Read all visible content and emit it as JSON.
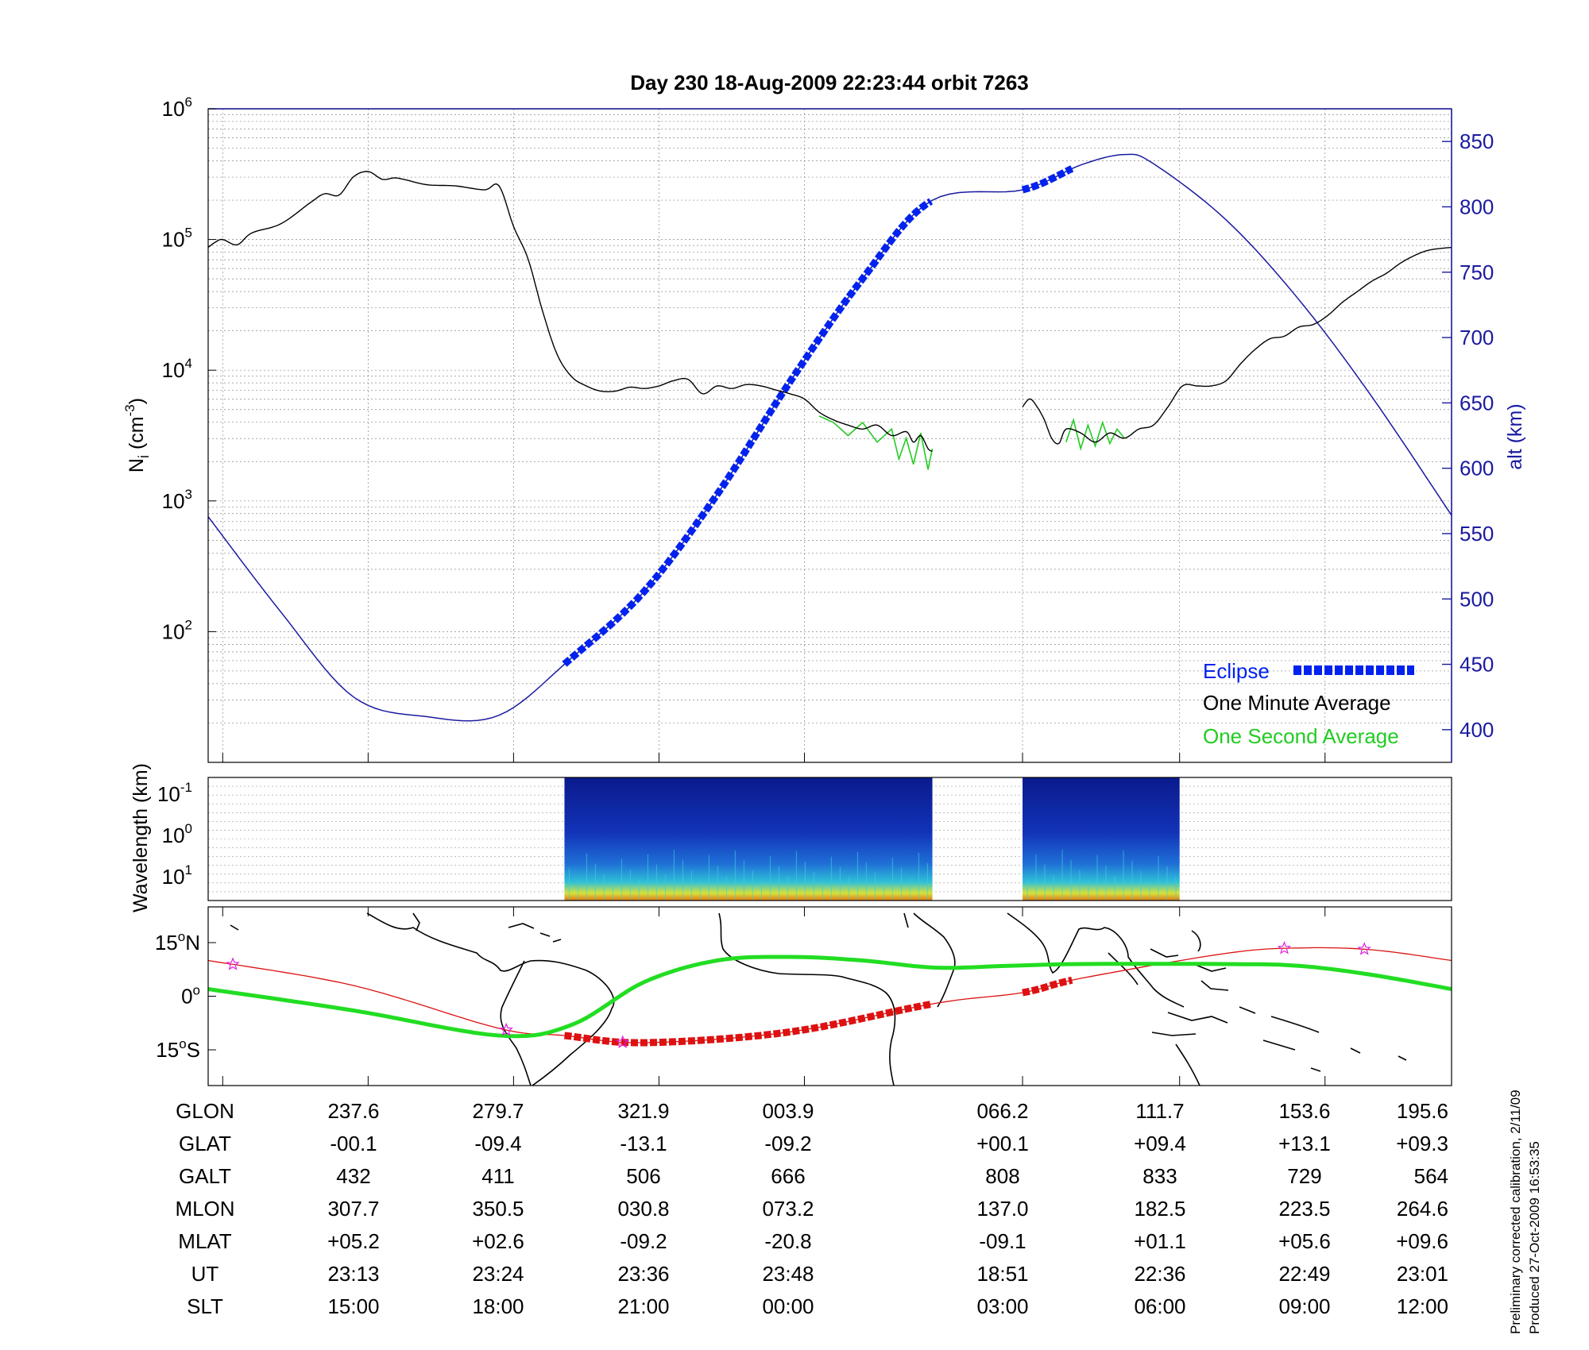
{
  "chart_data": {
    "title": "Day 230  18-Aug-2009 22:23:44   orbit 7263",
    "colors": {
      "eclipse": "#0022ee",
      "one_minute": "#000000",
      "one_second": "#22cc22",
      "altitude_line": "#1a1aa0",
      "track_red": "#dd1111",
      "track_green": "#22dd22",
      "axis_blue": "#1a1aa0",
      "star": "#dd22dd"
    },
    "density_panel": {
      "type": "line",
      "ylabel": "N_i (cm^-3)",
      "ylabel_main": "N",
      "ylabel_sub": "i",
      "ylabel_unit_a": "(cm",
      "ylabel_unit_exp": "-3",
      "ylabel_unit_b": ")",
      "yscale": "log",
      "ylim": [
        1,
        6
      ],
      "ytick_base": "10",
      "ytick_exponents": [
        "2",
        "3",
        "4",
        "5",
        "6"
      ],
      "right_axis": {
        "label": "alt (km)",
        "ylim": [
          375,
          875
        ],
        "ticks": [
          "400",
          "450",
          "500",
          "550",
          "600",
          "650",
          "700",
          "750",
          "800",
          "850"
        ]
      },
      "x_range": [
        0,
        8.55
      ],
      "series": [
        {
          "name": "One Minute Average",
          "x": [
            0,
            0.05,
            0.1,
            0.2,
            0.3,
            0.5,
            0.7,
            0.8,
            0.9,
            1.0,
            1.1,
            1.2,
            1.3,
            1.5,
            1.7,
            1.9,
            2.0,
            2.1,
            2.2,
            2.3,
            2.4,
            2.5,
            2.6,
            2.7,
            2.8,
            2.9,
            3.0,
            3.1,
            3.2,
            3.3,
            3.4,
            3.5,
            3.6,
            3.7,
            3.8,
            3.9,
            4.0,
            4.1,
            4.2,
            4.3,
            4.4,
            4.5,
            4.6,
            4.7,
            4.8,
            4.85,
            4.9,
            4.95,
            4.98
          ],
          "log10": [
            4.94,
            4.98,
            5.0,
            4.96,
            5.05,
            5.12,
            5.28,
            5.35,
            5.34,
            5.48,
            5.52,
            5.46,
            5.47,
            5.42,
            5.41,
            5.38,
            5.41,
            5.1,
            4.85,
            4.45,
            4.12,
            3.95,
            3.88,
            3.84,
            3.84,
            3.87,
            3.86,
            3.88,
            3.92,
            3.93,
            3.82,
            3.88,
            3.86,
            3.89,
            3.88,
            3.85,
            3.82,
            3.78,
            3.68,
            3.62,
            3.58,
            3.55,
            3.58,
            3.5,
            3.53,
            3.45,
            3.5,
            3.4,
            3.38
          ]
        },
        {
          "name": "One Minute Average",
          "x": [
            5.6,
            5.65,
            5.7,
            5.75,
            5.8,
            5.85,
            5.9,
            6.0,
            6.1,
            6.2,
            6.3,
            6.4,
            6.5,
            6.6,
            6.7,
            6.8,
            6.9,
            7.0,
            7.1,
            7.2,
            7.3,
            7.4,
            7.5,
            7.6,
            7.7,
            7.8,
            7.9,
            8.0,
            8.1,
            8.2,
            8.3,
            8.4,
            8.55
          ],
          "log10": [
            3.72,
            3.78,
            3.72,
            3.62,
            3.48,
            3.44,
            3.55,
            3.52,
            3.45,
            3.52,
            3.48,
            3.55,
            3.58,
            3.72,
            3.88,
            3.88,
            3.88,
            3.92,
            4.05,
            4.16,
            4.24,
            4.26,
            4.33,
            4.35,
            4.42,
            4.52,
            4.6,
            4.68,
            4.74,
            4.82,
            4.88,
            4.92,
            4.94
          ]
        },
        {
          "name": "One Second Average",
          "x": [
            4.2,
            4.3,
            4.4,
            4.5,
            4.6,
            4.7,
            4.75,
            4.8,
            4.85,
            4.9,
            4.95,
            4.98
          ],
          "log10": [
            3.65,
            3.6,
            3.5,
            3.6,
            3.45,
            3.55,
            3.32,
            3.48,
            3.28,
            3.52,
            3.24,
            3.4
          ]
        },
        {
          "name": "One Second Average",
          "x": [
            5.9,
            5.95,
            6.0,
            6.05,
            6.1,
            6.15,
            6.2,
            6.25,
            6.3
          ],
          "log10": [
            3.45,
            3.62,
            3.4,
            3.58,
            3.42,
            3.6,
            3.44,
            3.55,
            3.48
          ]
        }
      ],
      "altitude": {
        "x": [
          0,
          0.5,
          1.0,
          1.5,
          2.0,
          2.5,
          3.0,
          3.5,
          4.0,
          4.5,
          4.98,
          5.6,
          6.0,
          6.3,
          6.5,
          7.0,
          7.5,
          8.0,
          8.55
        ],
        "alt_km": [
          563,
          490,
          425,
          410,
          411,
          455,
          506,
          580,
          666,
          745,
          805,
          813,
          832,
          840,
          833,
          790,
          729,
          655,
          564
        ]
      },
      "eclipse_segments": [
        {
          "x": [
            2.45,
            4.98
          ]
        },
        {
          "x": [
            5.6,
            5.95
          ]
        }
      ],
      "legend": {
        "position": "bottom-right",
        "entries": [
          "Eclipse",
          "One Minute Average",
          "One Second Average"
        ]
      }
    },
    "spectrogram_panel": {
      "type": "heatmap",
      "ylabel": "Wavelength (km)",
      "ytick_base": "10",
      "ytick_exponents": [
        "-1",
        "0",
        "1"
      ],
      "data_segments": [
        {
          "x": [
            2.45,
            4.98
          ]
        },
        {
          "x": [
            5.6,
            6.68
          ]
        }
      ]
    },
    "map_panel": {
      "type": "line",
      "yticks": [
        {
          "value": "15",
          "deg": "o",
          "hemi": "N"
        },
        {
          "value": "0",
          "deg": "o",
          "hemi": ""
        },
        {
          "value": "15",
          "deg": "o",
          "hemi": "S"
        }
      ],
      "ylim": [
        -25,
        25
      ],
      "orbit_track_lat": {
        "x": [
          0,
          1,
          2,
          2.45,
          3,
          4,
          5,
          5.6,
          6,
          7,
          7.5,
          8,
          8.55
        ],
        "lat": [
          10,
          3,
          -9,
          -11,
          -13,
          -10,
          -2,
          1,
          5,
          12,
          13.5,
          13,
          10
        ]
      },
      "magnetic_equator_lat": {
        "x": [
          0,
          1,
          2,
          2.5,
          3,
          3.5,
          4,
          4.5,
          5,
          5.5,
          6,
          7,
          7.5,
          8,
          8.55
        ],
        "lat": [
          2,
          -4,
          -11,
          -8,
          4,
          10,
          11,
          10,
          8,
          8.5,
          9,
          9,
          8.5,
          6,
          2
        ]
      },
      "stars_x": [
        0.17,
        2.05,
        2.85,
        7.4,
        7.95
      ]
    },
    "x_labels": {
      "row_names": [
        "GLON",
        "GLAT",
        "GALT",
        "MLON",
        "MLAT",
        "UT",
        "SLT"
      ],
      "columns": [
        [
          "237.6",
          "-00.1",
          "432",
          "307.7",
          "+05.2",
          "23:13",
          "15:00"
        ],
        [
          "279.7",
          "-09.4",
          "411",
          "350.5",
          "+02.6",
          "23:24",
          "18:00"
        ],
        [
          "321.9",
          "-13.1",
          "506",
          "030.8",
          "-09.2",
          "23:36",
          "21:00"
        ],
        [
          "003.9",
          "-09.2",
          "666",
          "073.2",
          "-20.8",
          "23:48",
          "00:00"
        ],
        [
          "066.2",
          "+00.1",
          "808",
          "137.0",
          "-09.1",
          "18:51",
          "03:00"
        ],
        [
          "111.7",
          "+09.4",
          "833",
          "182.5",
          "+01.1",
          "22:36",
          "06:00"
        ],
        [
          "153.6",
          "+13.1",
          "729",
          "223.5",
          "+05.6",
          "22:49",
          "09:00"
        ],
        [
          "195.6",
          "+09.3",
          "564",
          "264.6",
          "+09.6",
          "23:01",
          "12:00"
        ]
      ]
    },
    "footnote": {
      "line1": "Preliminary corrected calibration, 2/11/09",
      "line2": "Produced 27-Oct-2009 16:53:35"
    }
  }
}
